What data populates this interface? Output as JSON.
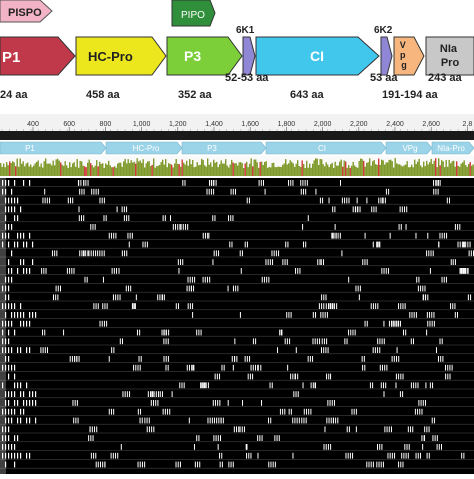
{
  "genome_map": {
    "proteins": [
      {
        "label": "P1",
        "length": "24 aa",
        "color": "#c0394b"
      },
      {
        "label": "HC-Pro",
        "length": "458 aa",
        "color": "#ece61c"
      },
      {
        "label": "P3",
        "length": "352 aa",
        "color": "#7dcf3a"
      },
      {
        "label": "6K1",
        "length": "52-53 aa",
        "color": "#8f87d6"
      },
      {
        "label": "CI",
        "length": "643 aa",
        "color": "#41c6ec"
      },
      {
        "label": "6K2",
        "length": "53 aa",
        "color": "#8f87d6"
      },
      {
        "label": "V\np\ng",
        "length": "191-194 aa",
        "color": "#f6b67e"
      },
      {
        "label": "NIa\nPro",
        "length": "243 aa",
        "color": "#c8c8c8"
      }
    ],
    "frameshift_products": [
      {
        "label": "PISPO",
        "color": "#f3b3c6"
      },
      {
        "label": "PIPO",
        "color": "#2f8f3a"
      }
    ]
  },
  "alignment": {
    "ruler_ticks": [
      "400",
      "600",
      "800",
      "1,000",
      "1,200",
      "1,400",
      "1,600",
      "1,800",
      "2,000",
      "2,200",
      "2,400",
      "2,600",
      "2,8"
    ],
    "annotation_labels": [
      "P1",
      "HC-Pro",
      "P3",
      "CI",
      "VPg",
      "NIa-Pro"
    ],
    "annotation_color": "#9bd3e8",
    "consensus_color": "#7f9a2a",
    "sequence_color": "#000000"
  }
}
